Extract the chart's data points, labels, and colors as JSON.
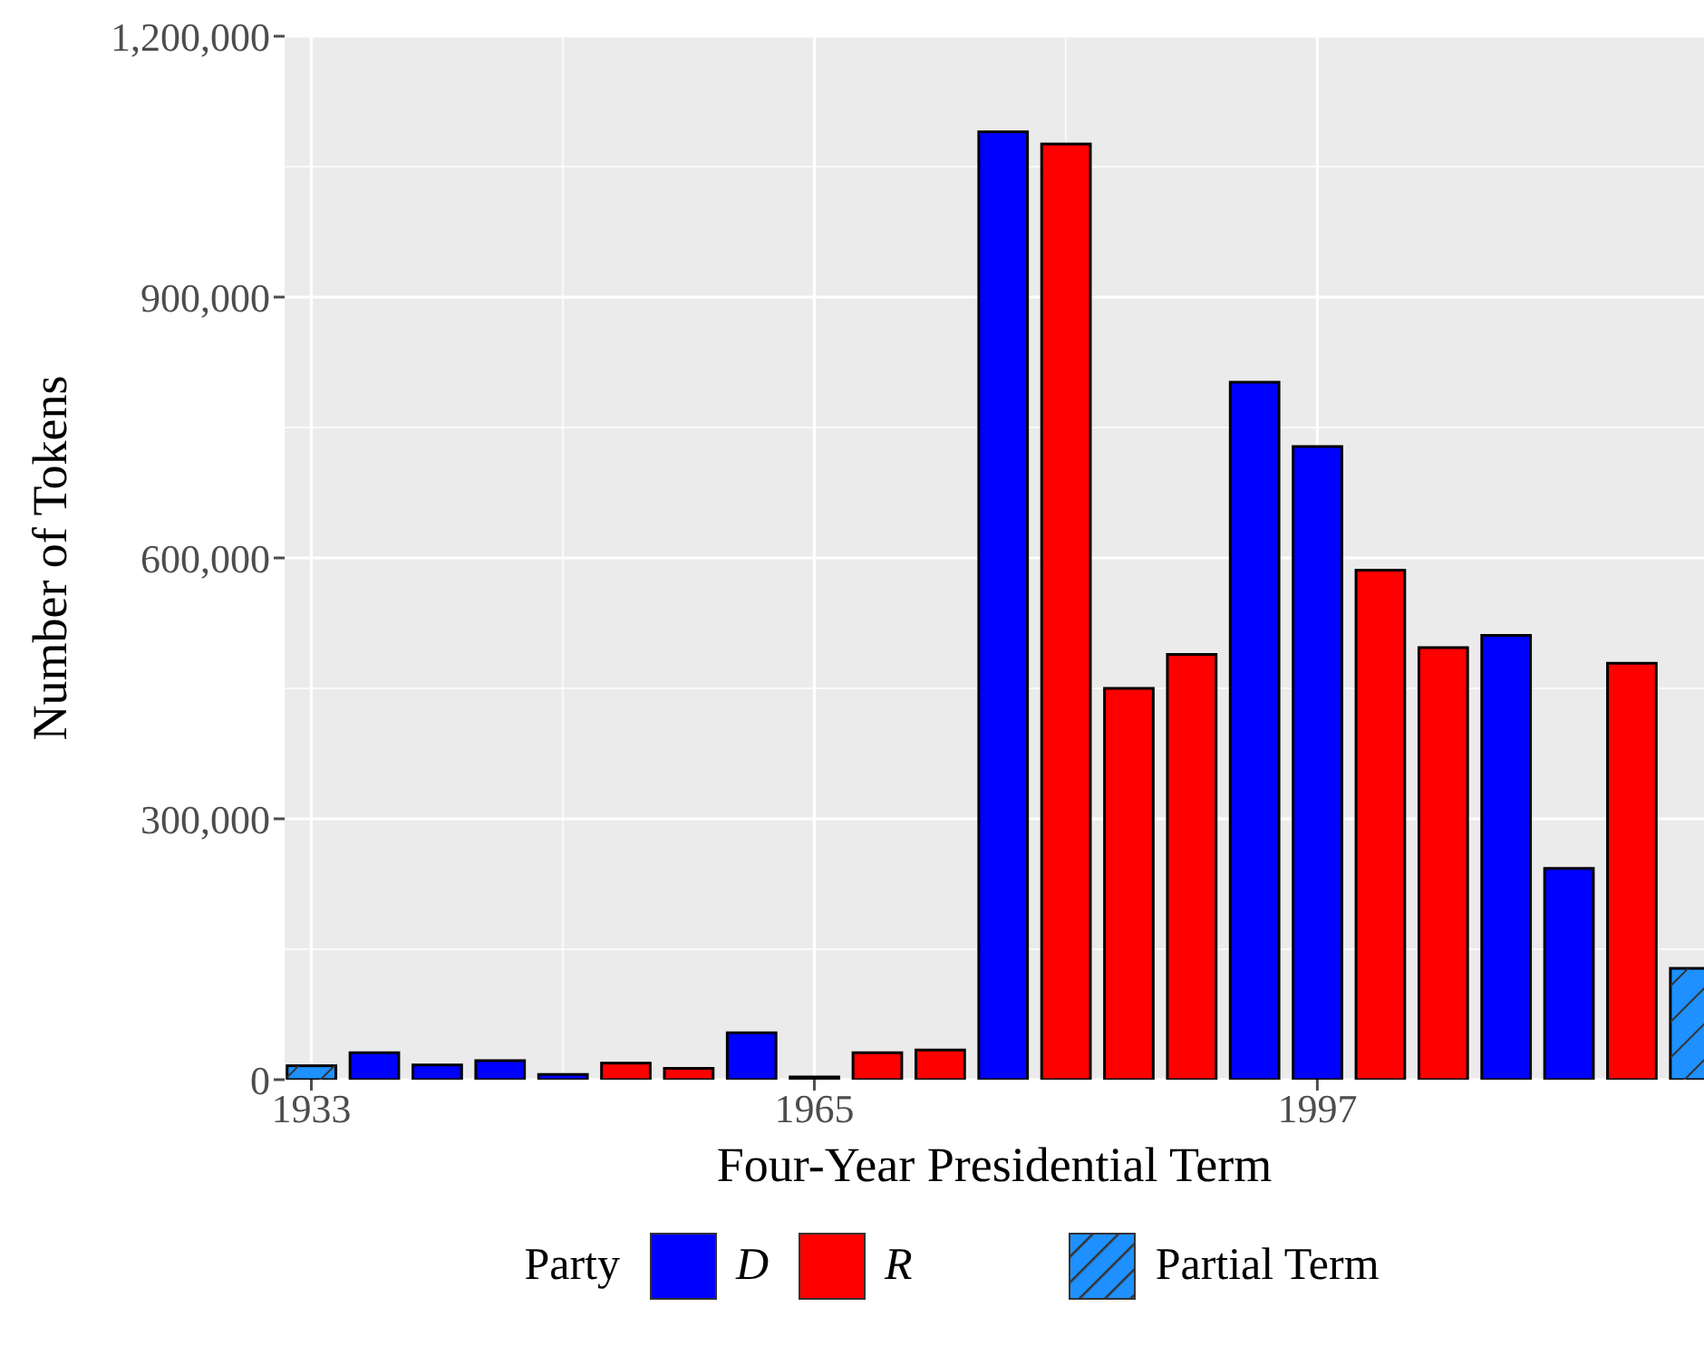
{
  "chart_data": {
    "type": "bar",
    "xlabel": "Four-Year Presidential Term",
    "ylabel": "Number of Tokens",
    "legend_title": "Party",
    "x": [
      1933,
      1937,
      1941,
      1945,
      1949,
      1953,
      1957,
      1961,
      1965,
      1969,
      1973,
      1977,
      1981,
      1985,
      1989,
      1993,
      1997,
      2001,
      2005,
      2009,
      2013,
      2017,
      2021
    ],
    "series": [
      {
        "name": "D",
        "color": "#0000ff",
        "values": [
          null,
          31000,
          17000,
          22000,
          6000,
          null,
          null,
          54000,
          3000,
          null,
          null,
          1090000,
          null,
          null,
          null,
          802000,
          728000,
          null,
          null,
          511000,
          243000,
          null,
          null
        ]
      },
      {
        "name": "R",
        "color": "#ff0000",
        "values": [
          null,
          null,
          null,
          null,
          null,
          19000,
          13000,
          null,
          null,
          31000,
          34000,
          null,
          1076000,
          450000,
          489000,
          null,
          null,
          586000,
          497000,
          null,
          null,
          479000,
          null
        ]
      },
      {
        "name": "Partial Term",
        "color": "#1e90ff",
        "values": [
          16000,
          null,
          null,
          null,
          null,
          null,
          null,
          null,
          null,
          null,
          null,
          null,
          null,
          null,
          null,
          null,
          null,
          null,
          null,
          null,
          null,
          null,
          128000
        ]
      }
    ],
    "xlim": [
      1931.3,
      2021.6
    ],
    "xticks": [
      1933,
      1965,
      1997
    ],
    "ylim": [
      0,
      1200000
    ],
    "yticks": [
      0,
      {
        "value": 300000,
        "label": "300,000"
      },
      {
        "value": 600000,
        "label": "600,000"
      },
      {
        "value": 900000,
        "label": "900,000"
      },
      {
        "value": 1200000,
        "label": "1,200,000"
      }
    ],
    "grid": true,
    "legend": "bottom"
  }
}
